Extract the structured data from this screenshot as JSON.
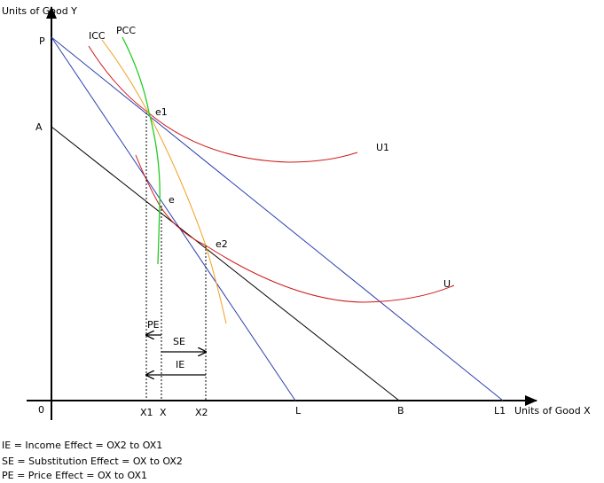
{
  "axes": {
    "y_label": "Units of Good Y",
    "x_label": "Units of Good X",
    "origin": "0"
  },
  "intercepts": {
    "y": [
      "P",
      "A"
    ],
    "x": [
      "X1",
      "X",
      "X2",
      "L",
      "B",
      "L1"
    ]
  },
  "curves": {
    "icc": "ICC",
    "pcc": "PCC",
    "u1": "U1",
    "u": "U"
  },
  "points": [
    "e1",
    "e",
    "e2"
  ],
  "effects": {
    "pe": "PE",
    "se": "SE",
    "ie": "IE"
  },
  "notes": [
    "IE = Income Effect  = OX2 to OX1",
    "SE = Substitution Effect  = OX to OX2",
    "PE = Price Effect = OX to OX1"
  ]
}
